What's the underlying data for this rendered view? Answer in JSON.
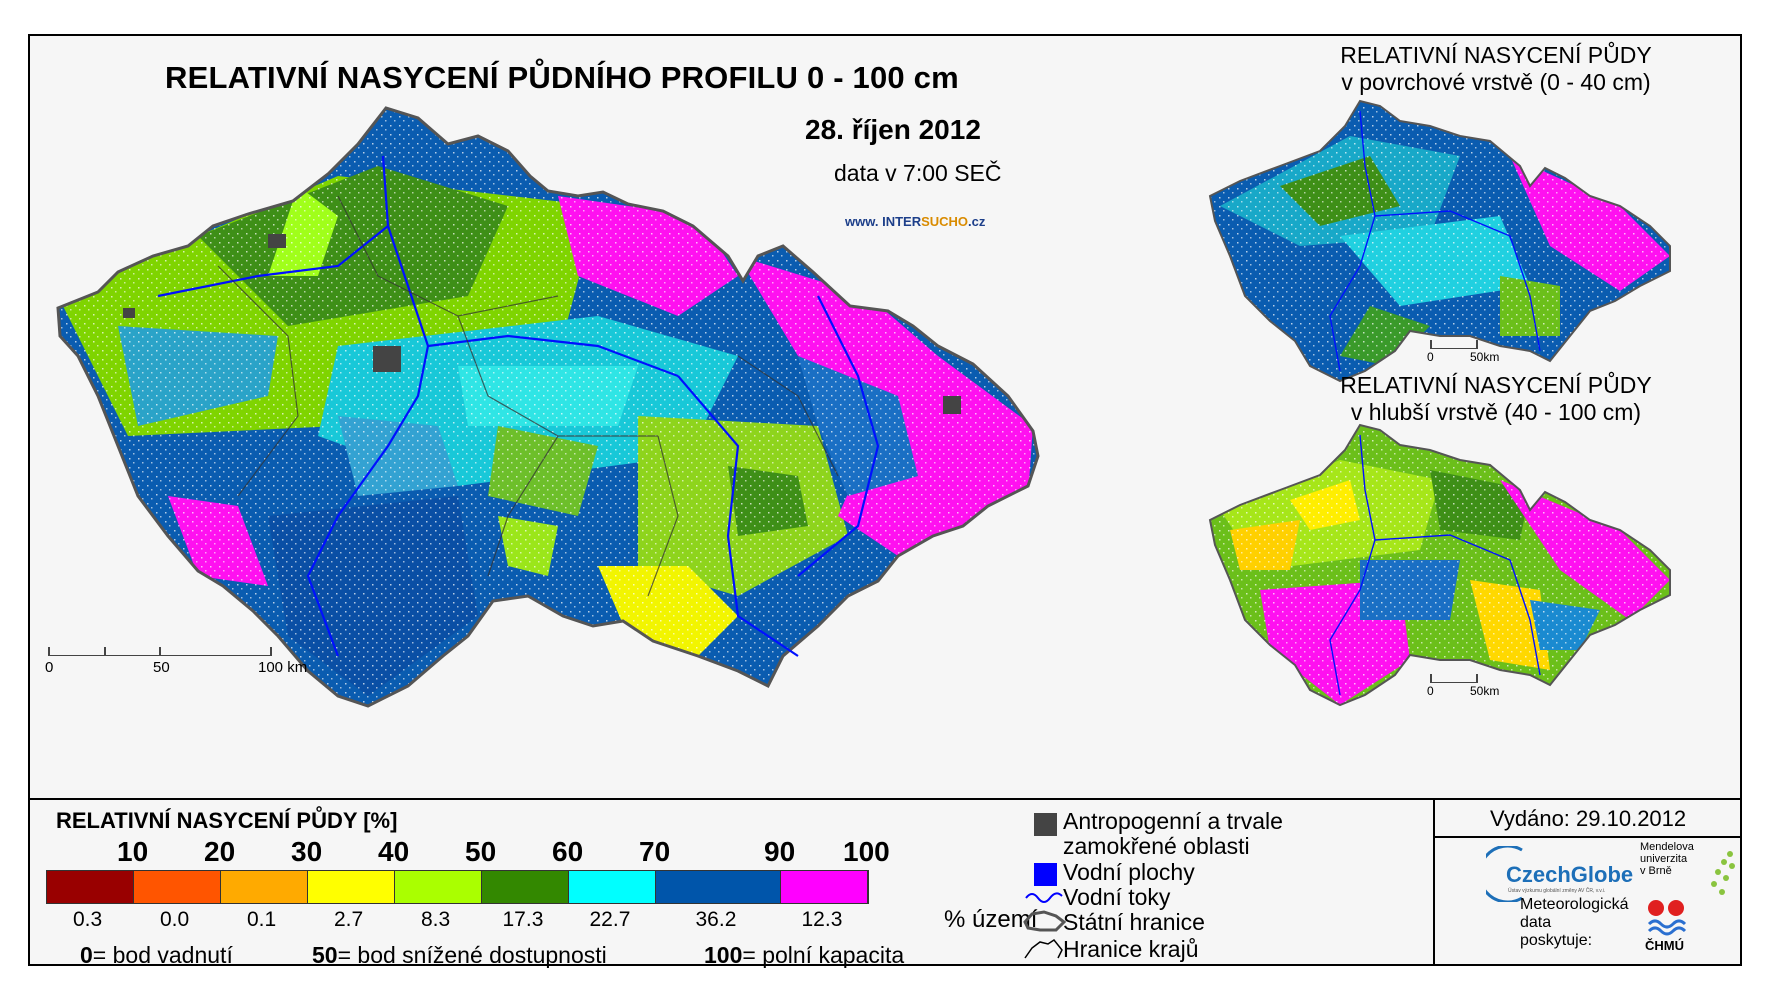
{
  "main": {
    "title": "RELATIVNÍ NASYCENÍ PŮDNÍHO PROFILU 0 - 100 cm",
    "date": "28. říjen 2012",
    "data_time": "data v 7:00 SEČ",
    "www_prefix": "www. INTER",
    "www_mid": "SUCHO",
    "www_suffix": ".cz",
    "scale": {
      "l0": "0",
      "l1": "50",
      "l2": "100 km"
    }
  },
  "inset_surface": {
    "title_line1": "RELATIVNÍ NASYCENÍ PŮDY",
    "title_line2": "v povrchové vrstvě (0 - 40 cm)",
    "scale": {
      "l0": "0",
      "l1": "50km"
    }
  },
  "inset_deep": {
    "title_line1": "RELATIVNÍ NASYCENÍ PŮDY",
    "title_line2": "v hlubší vrstvě (40 - 100 cm)",
    "scale": {
      "l0": "0",
      "l1": "50km"
    }
  },
  "legend": {
    "title": "RELATIVNÍ NASYCENÍ PŮDY [%]",
    "ticks": [
      "10",
      "20",
      "30",
      "40",
      "50",
      "60",
      "70",
      "90",
      "100"
    ],
    "classes": [
      {
        "color": "#990000",
        "pct": "0.3"
      },
      {
        "color": "#ff5500",
        "pct": "0.0"
      },
      {
        "color": "#ffaa00",
        "pct": "0.1"
      },
      {
        "color": "#ffff00",
        "pct": "2.7"
      },
      {
        "color": "#aaff00",
        "pct": "8.3"
      },
      {
        "color": "#338800",
        "pct": "17.3"
      },
      {
        "color": "#00ffff",
        "pct": "22.7"
      },
      {
        "color": "#0055aa",
        "pct": "36.2"
      },
      {
        "color": "#ff00ff",
        "pct": "12.3"
      }
    ],
    "pct_unit": "% území",
    "footnotes": {
      "n0": "0",
      "t0": "= bod vadnutí",
      "n50": "50",
      "t50": "= bod snížené dostupnosti",
      "n100": "100",
      "t100": "= polní kapacita"
    },
    "symbols": {
      "anthropogenic_line1": "Antropogenní a trvale",
      "anthropogenic_line2": "zamokřené oblasti",
      "water_bodies": "Vodní plochy",
      "rivers": "Vodní toky",
      "state_border": "Státní hranice",
      "region_border": "Hranice krajů"
    }
  },
  "issued": "Vydáno: 29.10.2012",
  "logos": {
    "czechglobe": "CzechGlobe",
    "czechglobe_sub": "Ústav výzkumu globální změny AV ČR, v.v.i.",
    "mendel_1": "Mendelova",
    "mendel_2": "univerzita",
    "mendel_3": "v Brně",
    "meteo_1": "Meteorologická",
    "meteo_2": "data",
    "meteo_3": "poskytuje:",
    "chmu": "ČHMÚ"
  },
  "colors": {
    "anthropogenic": "#444444",
    "water": "#0000ff",
    "river": "#0000ff"
  }
}
